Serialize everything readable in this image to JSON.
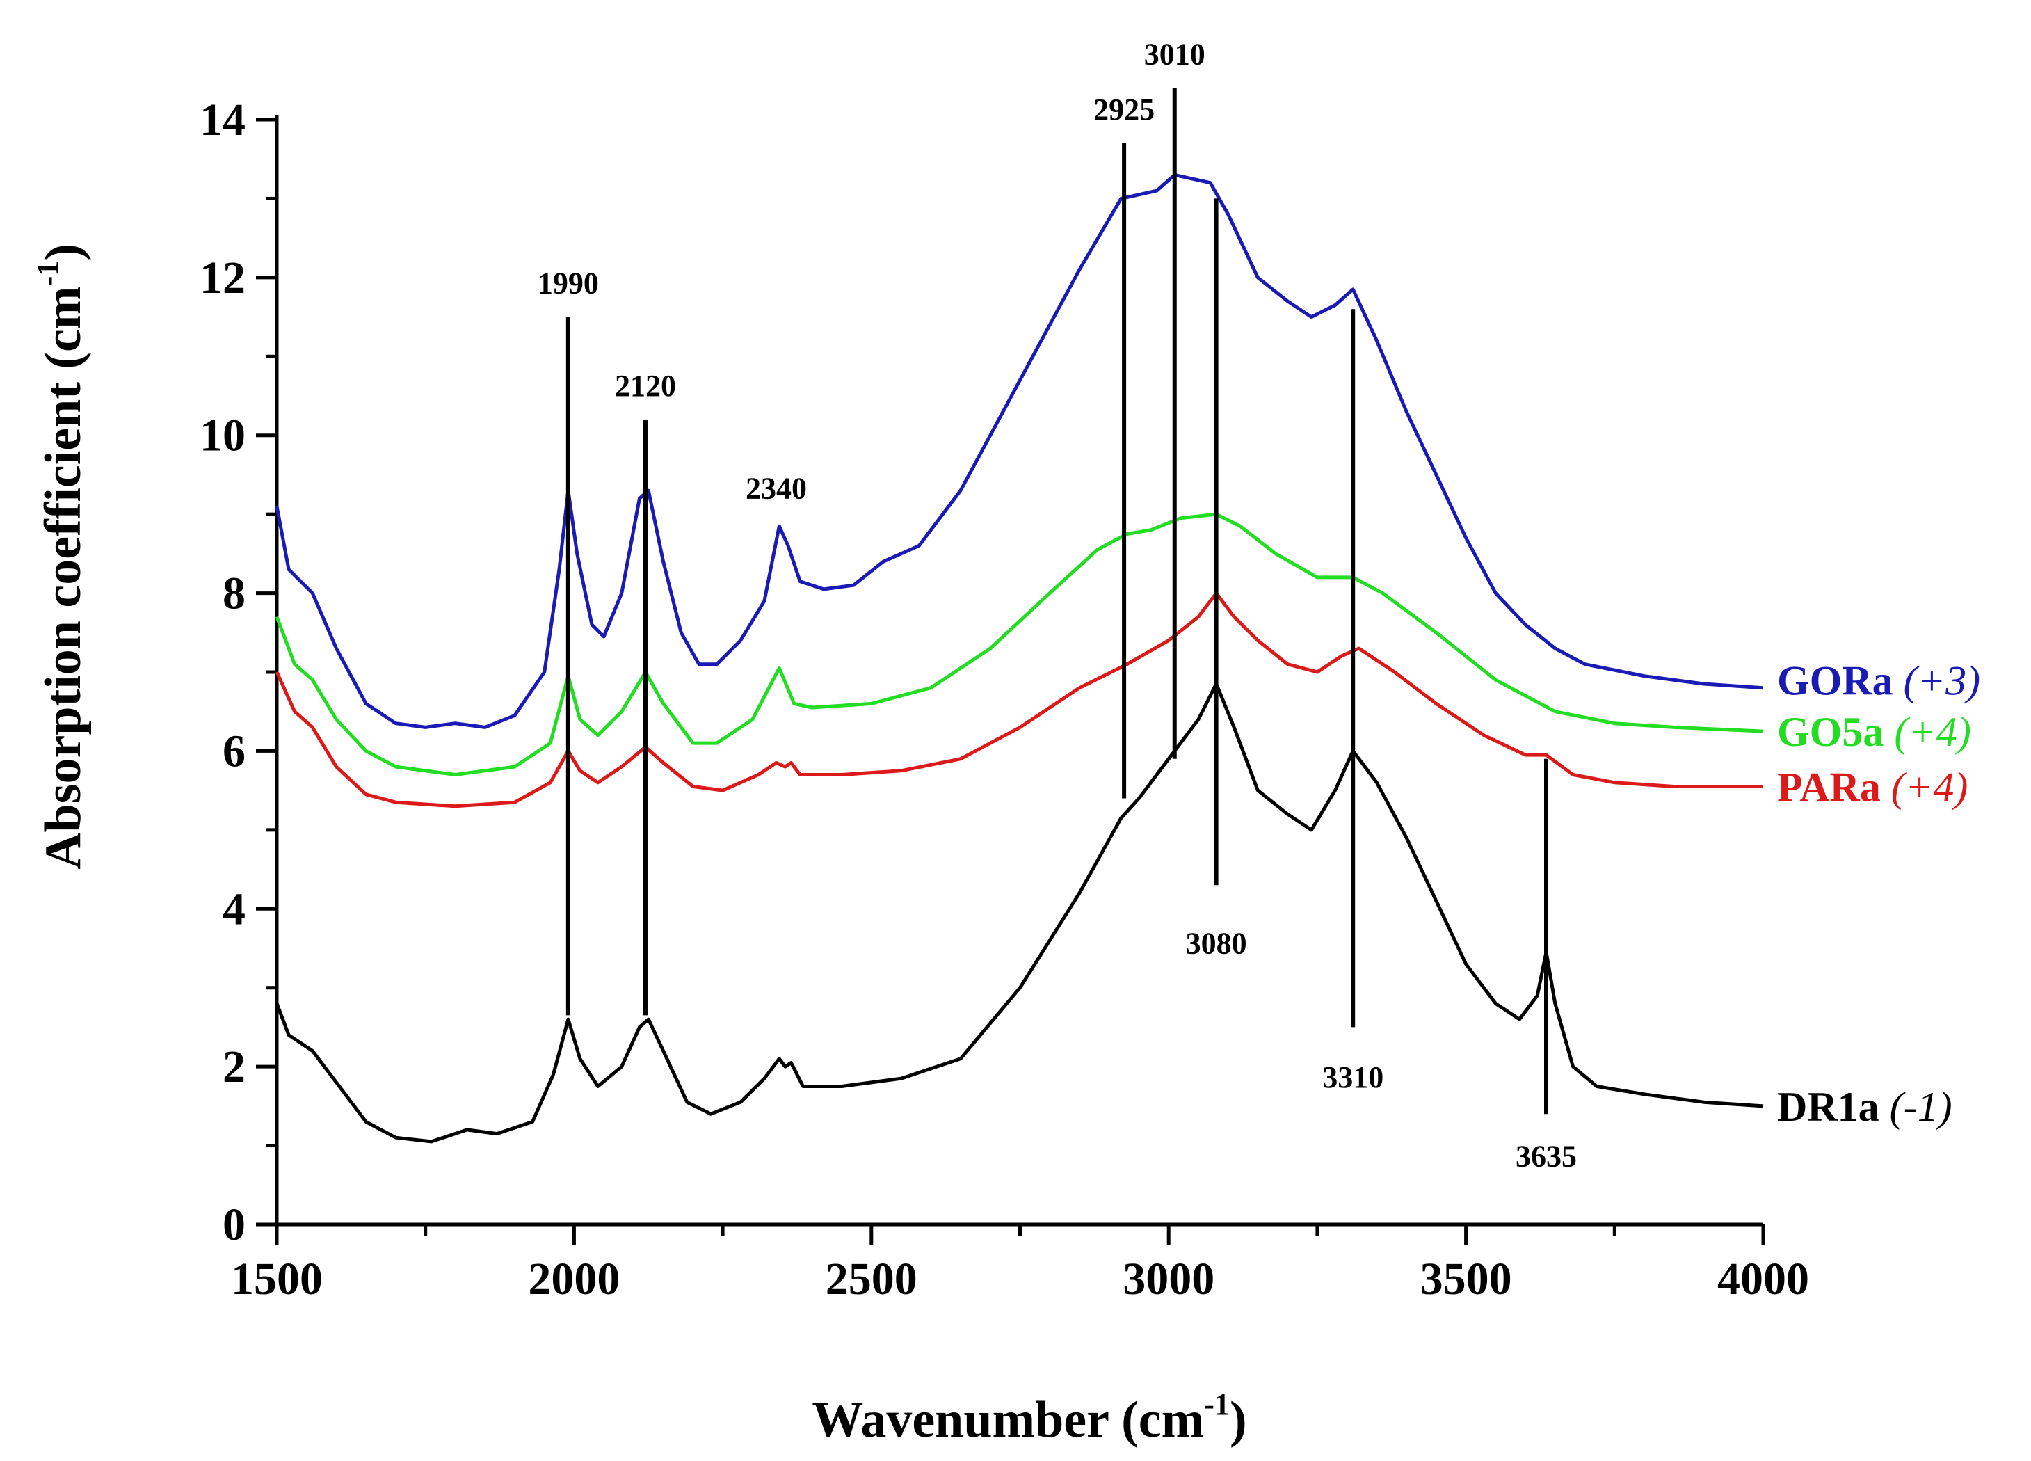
{
  "chart_data": {
    "type": "line",
    "xlabel": "Wavenumber",
    "xlabel_unit": "(cm",
    "xlabel_sup": "-1",
    "xlabel_close": ")",
    "ylabel": "Absorption coefficient",
    "ylabel_unit": "(cm",
    "ylabel_sup": "-1",
    "ylabel_close": ")",
    "xlim": [
      1500,
      4000
    ],
    "ylim": [
      0,
      14
    ],
    "x_ticks": [
      1500,
      2000,
      2500,
      3000,
      3500,
      4000
    ],
    "y_ticks": [
      0,
      2,
      4,
      6,
      8,
      10,
      12,
      14
    ],
    "x_minor_step": 250,
    "y_minor_step": 1,
    "series": [
      {
        "name": "GORa",
        "offset": "(+3)",
        "color": "#1a1ab4",
        "points": [
          [
            1500,
            9.1
          ],
          [
            1520,
            8.3
          ],
          [
            1560,
            8.0
          ],
          [
            1600,
            7.3
          ],
          [
            1650,
            6.6
          ],
          [
            1700,
            6.35
          ],
          [
            1750,
            6.3
          ],
          [
            1800,
            6.35
          ],
          [
            1850,
            6.3
          ],
          [
            1900,
            6.45
          ],
          [
            1950,
            7.0
          ],
          [
            1975,
            8.3
          ],
          [
            1990,
            9.3
          ],
          [
            2005,
            8.5
          ],
          [
            2030,
            7.6
          ],
          [
            2050,
            7.45
          ],
          [
            2080,
            8.0
          ],
          [
            2110,
            9.2
          ],
          [
            2125,
            9.3
          ],
          [
            2150,
            8.4
          ],
          [
            2180,
            7.5
          ],
          [
            2210,
            7.1
          ],
          [
            2240,
            7.1
          ],
          [
            2280,
            7.4
          ],
          [
            2320,
            7.9
          ],
          [
            2345,
            8.85
          ],
          [
            2360,
            8.6
          ],
          [
            2380,
            8.15
          ],
          [
            2420,
            8.05
          ],
          [
            2470,
            8.1
          ],
          [
            2520,
            8.4
          ],
          [
            2580,
            8.6
          ],
          [
            2650,
            9.3
          ],
          [
            2750,
            10.7
          ],
          [
            2850,
            12.1
          ],
          [
            2920,
            13.0
          ],
          [
            2950,
            13.05
          ],
          [
            2980,
            13.1
          ],
          [
            3010,
            13.3
          ],
          [
            3040,
            13.25
          ],
          [
            3070,
            13.2
          ],
          [
            3100,
            12.8
          ],
          [
            3150,
            12.0
          ],
          [
            3200,
            11.7
          ],
          [
            3240,
            11.5
          ],
          [
            3280,
            11.65
          ],
          [
            3310,
            11.85
          ],
          [
            3350,
            11.2
          ],
          [
            3400,
            10.3
          ],
          [
            3450,
            9.5
          ],
          [
            3500,
            8.7
          ],
          [
            3550,
            8.0
          ],
          [
            3600,
            7.6
          ],
          [
            3650,
            7.3
          ],
          [
            3700,
            7.1
          ],
          [
            3800,
            6.95
          ],
          [
            3900,
            6.85
          ],
          [
            4000,
            6.8
          ]
        ]
      },
      {
        "name": "GO5a",
        "offset": "(+4)",
        "color": "#22dd22",
        "points": [
          [
            1500,
            7.7
          ],
          [
            1530,
            7.1
          ],
          [
            1560,
            6.9
          ],
          [
            1600,
            6.4
          ],
          [
            1650,
            6.0
          ],
          [
            1700,
            5.8
          ],
          [
            1800,
            5.7
          ],
          [
            1900,
            5.8
          ],
          [
            1960,
            6.1
          ],
          [
            1990,
            6.95
          ],
          [
            2010,
            6.4
          ],
          [
            2040,
            6.2
          ],
          [
            2080,
            6.5
          ],
          [
            2120,
            7.0
          ],
          [
            2150,
            6.6
          ],
          [
            2200,
            6.1
          ],
          [
            2240,
            6.1
          ],
          [
            2300,
            6.4
          ],
          [
            2345,
            7.05
          ],
          [
            2370,
            6.6
          ],
          [
            2400,
            6.55
          ],
          [
            2500,
            6.6
          ],
          [
            2600,
            6.8
          ],
          [
            2700,
            7.3
          ],
          [
            2800,
            8.0
          ],
          [
            2880,
            8.55
          ],
          [
            2930,
            8.75
          ],
          [
            2970,
            8.8
          ],
          [
            3020,
            8.95
          ],
          [
            3080,
            9.0
          ],
          [
            3120,
            8.85
          ],
          [
            3180,
            8.5
          ],
          [
            3250,
            8.2
          ],
          [
            3310,
            8.2
          ],
          [
            3360,
            8.0
          ],
          [
            3450,
            7.5
          ],
          [
            3550,
            6.9
          ],
          [
            3650,
            6.5
          ],
          [
            3750,
            6.35
          ],
          [
            3850,
            6.3
          ],
          [
            4000,
            6.25
          ]
        ]
      },
      {
        "name": "PARa",
        "offset": "(+4)",
        "color": "#dd1a1a",
        "points": [
          [
            1500,
            7.0
          ],
          [
            1530,
            6.5
          ],
          [
            1560,
            6.3
          ],
          [
            1600,
            5.8
          ],
          [
            1650,
            5.45
          ],
          [
            1700,
            5.35
          ],
          [
            1800,
            5.3
          ],
          [
            1900,
            5.35
          ],
          [
            1960,
            5.6
          ],
          [
            1990,
            6.0
          ],
          [
            2010,
            5.75
          ],
          [
            2040,
            5.6
          ],
          [
            2080,
            5.8
          ],
          [
            2120,
            6.05
          ],
          [
            2150,
            5.85
          ],
          [
            2200,
            5.55
          ],
          [
            2250,
            5.5
          ],
          [
            2310,
            5.7
          ],
          [
            2340,
            5.85
          ],
          [
            2355,
            5.8
          ],
          [
            2365,
            5.85
          ],
          [
            2380,
            5.7
          ],
          [
            2450,
            5.7
          ],
          [
            2550,
            5.75
          ],
          [
            2650,
            5.9
          ],
          [
            2750,
            6.3
          ],
          [
            2850,
            6.8
          ],
          [
            2930,
            7.1
          ],
          [
            3000,
            7.4
          ],
          [
            3050,
            7.7
          ],
          [
            3080,
            8.0
          ],
          [
            3110,
            7.7
          ],
          [
            3150,
            7.4
          ],
          [
            3200,
            7.1
          ],
          [
            3250,
            7.0
          ],
          [
            3290,
            7.2
          ],
          [
            3320,
            7.3
          ],
          [
            3380,
            7.0
          ],
          [
            3450,
            6.6
          ],
          [
            3530,
            6.2
          ],
          [
            3600,
            5.95
          ],
          [
            3635,
            5.95
          ],
          [
            3680,
            5.7
          ],
          [
            3750,
            5.6
          ],
          [
            3850,
            5.55
          ],
          [
            4000,
            5.55
          ]
        ]
      },
      {
        "name": "DR1a",
        "offset": "(-1)",
        "color": "#000000",
        "points": [
          [
            1500,
            2.8
          ],
          [
            1520,
            2.4
          ],
          [
            1560,
            2.2
          ],
          [
            1600,
            1.8
          ],
          [
            1650,
            1.3
          ],
          [
            1700,
            1.1
          ],
          [
            1760,
            1.05
          ],
          [
            1820,
            1.2
          ],
          [
            1870,
            1.15
          ],
          [
            1930,
            1.3
          ],
          [
            1965,
            1.9
          ],
          [
            1990,
            2.6
          ],
          [
            2010,
            2.1
          ],
          [
            2040,
            1.75
          ],
          [
            2080,
            2.0
          ],
          [
            2110,
            2.5
          ],
          [
            2125,
            2.6
          ],
          [
            2150,
            2.2
          ],
          [
            2190,
            1.55
          ],
          [
            2230,
            1.4
          ],
          [
            2280,
            1.55
          ],
          [
            2320,
            1.85
          ],
          [
            2345,
            2.1
          ],
          [
            2355,
            2.0
          ],
          [
            2365,
            2.05
          ],
          [
            2385,
            1.75
          ],
          [
            2450,
            1.75
          ],
          [
            2550,
            1.85
          ],
          [
            2650,
            2.1
          ],
          [
            2750,
            3.0
          ],
          [
            2850,
            4.2
          ],
          [
            2920,
            5.15
          ],
          [
            2950,
            5.4
          ],
          [
            3000,
            5.9
          ],
          [
            3050,
            6.4
          ],
          [
            3080,
            6.85
          ],
          [
            3110,
            6.3
          ],
          [
            3150,
            5.5
          ],
          [
            3200,
            5.2
          ],
          [
            3240,
            5.0
          ],
          [
            3280,
            5.5
          ],
          [
            3310,
            6.0
          ],
          [
            3350,
            5.6
          ],
          [
            3400,
            4.9
          ],
          [
            3450,
            4.1
          ],
          [
            3500,
            3.3
          ],
          [
            3550,
            2.8
          ],
          [
            3590,
            2.6
          ],
          [
            3620,
            2.9
          ],
          [
            3635,
            3.45
          ],
          [
            3650,
            2.8
          ],
          [
            3680,
            2.0
          ],
          [
            3720,
            1.75
          ],
          [
            3800,
            1.65
          ],
          [
            3900,
            1.55
          ],
          [
            4000,
            1.5
          ]
        ]
      }
    ],
    "annotations": [
      {
        "label": "1990",
        "x": 1990,
        "y_bottom": 2.65,
        "y_top": 11.5,
        "label_y": 11.8
      },
      {
        "label": "2120",
        "x": 2120,
        "y_bottom": 2.65,
        "y_top": 10.2,
        "label_y": 10.5
      },
      {
        "label": "2340",
        "label_x": 2340,
        "label_y": 9.2
      },
      {
        "label": "2925",
        "x": 2925,
        "y_bottom": 5.4,
        "y_top": 13.7,
        "label_y": 14.0
      },
      {
        "label": "3010",
        "x": 3010,
        "y_bottom": 5.9,
        "y_top": 14.4,
        "label_y": 14.7
      },
      {
        "label": "3080",
        "x": 3080,
        "y_bottom": 4.3,
        "y_top": 13.0,
        "label_y": 3.7,
        "label_below": true
      },
      {
        "label": "3310",
        "x": 3310,
        "y_bottom": 2.5,
        "y_top": 11.6,
        "label_y": 2.0,
        "label_below": true
      },
      {
        "label": "3635",
        "x": 3635,
        "y_bottom": 1.4,
        "y_top": 5.9,
        "label_y": 1.0,
        "label_below": true
      }
    ]
  }
}
